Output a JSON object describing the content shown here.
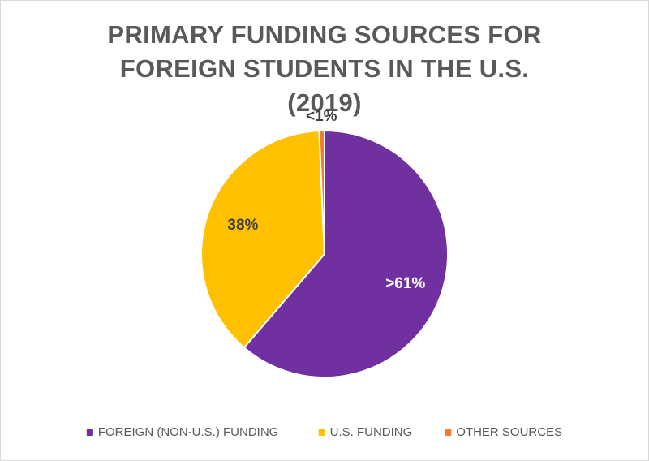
{
  "chart_data": {
    "type": "pie",
    "title": "PRIMARY FUNDING SOURCES FOR FOREIGN STUDENTS IN THE U.S. (2019)",
    "categories": [
      "FOREIGN (NON-U.S.) FUNDING",
      "U.S. FUNDING",
      "OTHER SOURCES"
    ],
    "values": [
      61.3,
      38,
      0.7
    ],
    "value_labels": [
      ">61%",
      "38%",
      "<1%"
    ],
    "colors": [
      "#7030a0",
      "#ffc000",
      "#ed7d31"
    ],
    "legend": "bottom"
  }
}
